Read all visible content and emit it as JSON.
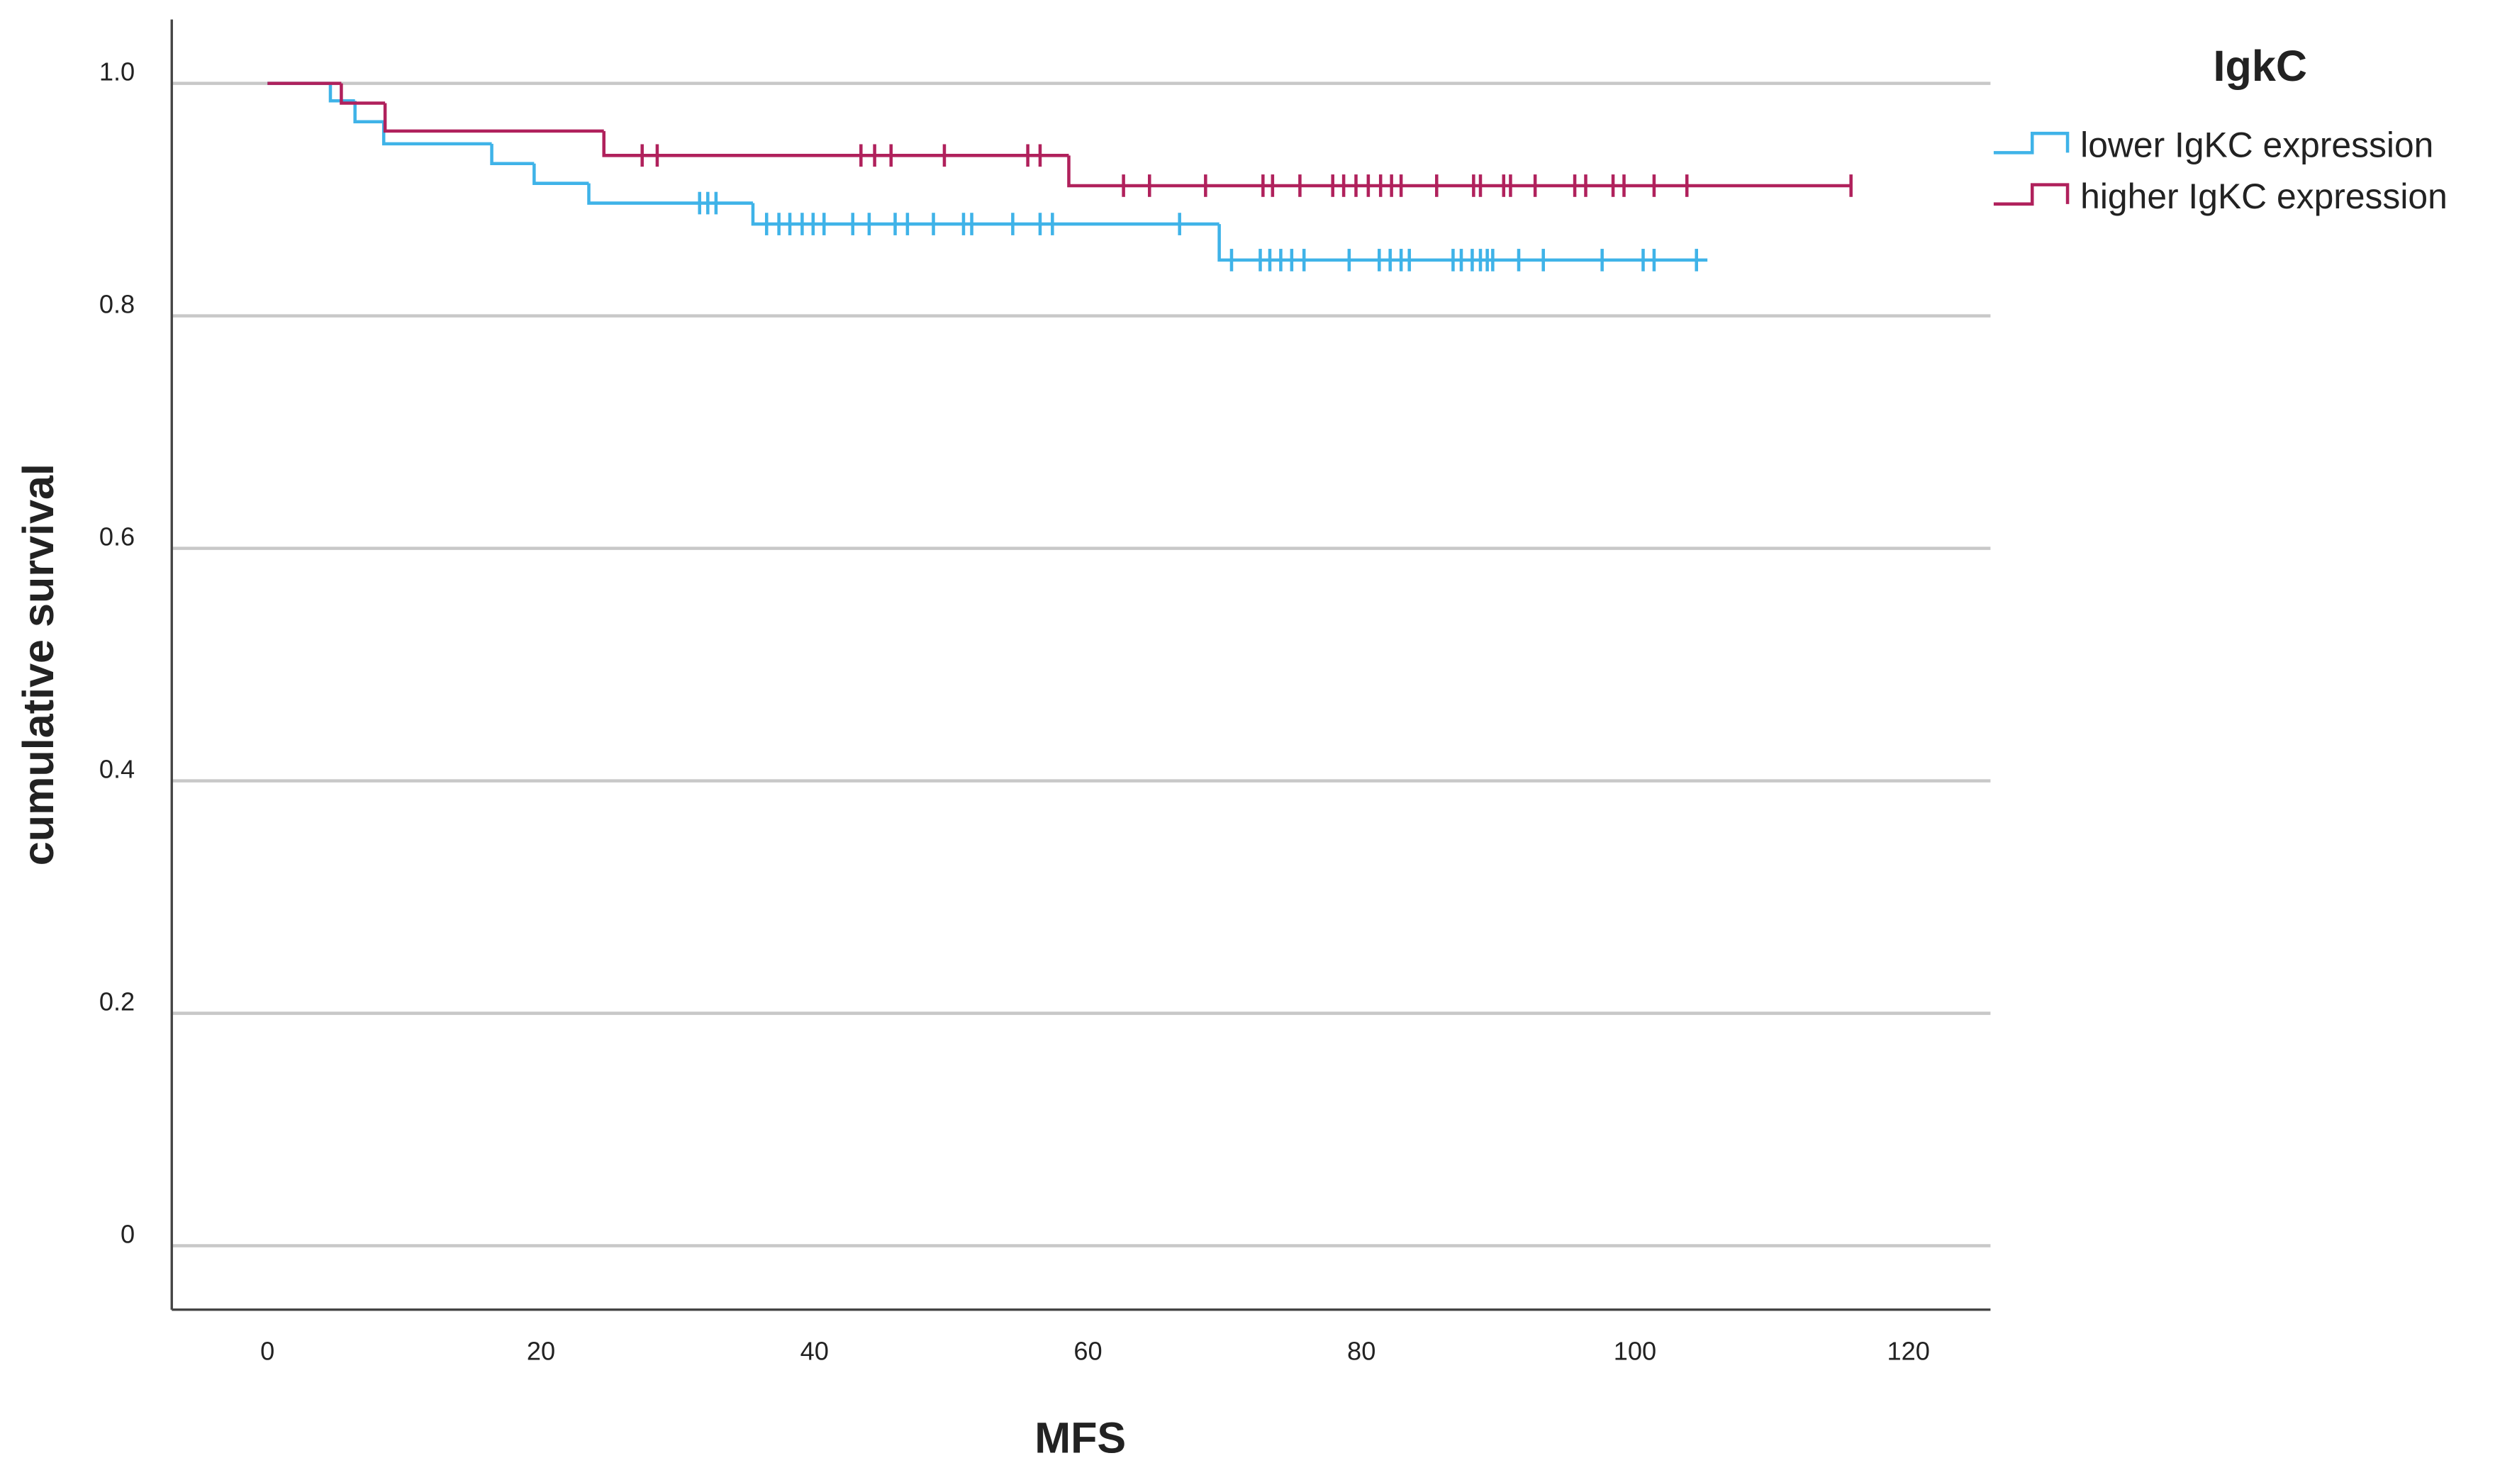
{
  "chart_data": {
    "type": "step",
    "xlabel": "MFS",
    "ylabel": "cumulative survival",
    "legend_title": "IgkC",
    "legend": "upper right outside",
    "grid": true,
    "xlim": [
      -7,
      126
    ],
    "ylim": [
      -0.055,
      1.055
    ],
    "xticks": [
      0,
      20,
      40,
      60,
      80,
      100,
      120
    ],
    "yticks": [
      {
        "value": 1,
        "label": "1.0"
      },
      0.8,
      0.6,
      0.4,
      0.2,
      0
    ],
    "series": [
      {
        "name": "lower IgKC expression",
        "color": "#3fb3e8",
        "x": [
          0,
          4.6,
          6.4,
          8.5,
          16.4,
          19.5,
          23.5,
          35.5,
          69.6,
          105.3
        ],
        "values": [
          1,
          0.985,
          0.967,
          0.948,
          0.931,
          0.914,
          0.897,
          0.879,
          0.848,
          0.848
        ],
        "censor_x": [
          31.6,
          32.2,
          32.8,
          36.5,
          37.4,
          38.2,
          39.1,
          39.9,
          40.7,
          42.8,
          44.0,
          45.9,
          46.8,
          48.7,
          50.9,
          51.5,
          54.5,
          56.5,
          57.4,
          66.7,
          70.5,
          72.6,
          73.3,
          74.1,
          74.9,
          75.8,
          79.1,
          81.3,
          82.1,
          82.9,
          83.5,
          86.7,
          87.3,
          88.1,
          88.7,
          89.2,
          89.6,
          91.5,
          93.3,
          97.6,
          100.6,
          101.4,
          104.5
        ],
        "censor_values": [
          0.897,
          0.897,
          0.897,
          0.879,
          0.879,
          0.879,
          0.879,
          0.879,
          0.879,
          0.879,
          0.879,
          0.879,
          0.879,
          0.879,
          0.879,
          0.879,
          0.879,
          0.879,
          0.879,
          0.879,
          0.848,
          0.848,
          0.848,
          0.848,
          0.848,
          0.848,
          0.848,
          0.848,
          0.848,
          0.848,
          0.848,
          0.848,
          0.848,
          0.848,
          0.848,
          0.848,
          0.848,
          0.848,
          0.848,
          0.848,
          0.848,
          0.848,
          0.848
        ]
      },
      {
        "name": "higher IgKC expression",
        "color": "#b0215c",
        "x": [
          0,
          5.4,
          8.6,
          24.6,
          58.6,
          115.8
        ],
        "values": [
          1,
          0.983,
          0.959,
          0.938,
          0.912,
          0.912
        ],
        "censor_x": [
          27.4,
          28.5,
          43.4,
          44.4,
          45.6,
          49.5,
          55.6,
          56.5,
          62.6,
          64.5,
          68.6,
          72.8,
          73.5,
          75.5,
          77.9,
          78.7,
          79.6,
          80.5,
          81.4,
          82.2,
          82.9,
          85.5,
          88.2,
          88.7,
          90.4,
          90.9,
          92.7,
          95.6,
          96.4,
          98.4,
          99.2,
          101.4,
          103.8,
          115.8
        ],
        "censor_values": [
          0.938,
          0.938,
          0.938,
          0.938,
          0.938,
          0.938,
          0.938,
          0.938,
          0.912,
          0.912,
          0.912,
          0.912,
          0.912,
          0.912,
          0.912,
          0.912,
          0.912,
          0.912,
          0.912,
          0.912,
          0.912,
          0.912,
          0.912,
          0.912,
          0.912,
          0.912,
          0.912,
          0.912,
          0.912,
          0.912,
          0.912,
          0.912,
          0.912,
          0.912
        ]
      }
    ]
  }
}
